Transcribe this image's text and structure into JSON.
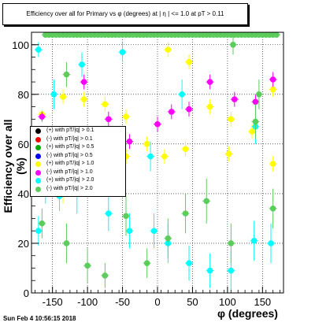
{
  "chart_data": {
    "type": "scatter",
    "title": "Efficiency over all for Primary vs φ (degrees) at | η | <= 1.0 at pT > 0.11",
    "xlabel": "φ (degrees)",
    "ylabel": "Efficiency over all (%)",
    "xlim": [
      -180,
      180
    ],
    "ylim": [
      0,
      105
    ],
    "x_ticks": [
      -150,
      -100,
      -50,
      0,
      50,
      100,
      150
    ],
    "y_ticks": [
      0,
      20,
      40,
      60,
      80,
      100
    ],
    "grid": true,
    "legend_position": "left-middle",
    "series": [
      {
        "name": "(+) with pT/|q| > 0.1",
        "color": "#000000",
        "points": []
      },
      {
        "name": "(-) with pT/|q| > 0.1",
        "color": "#ff0000",
        "points": []
      },
      {
        "name": "(+) with pT/|q| > 0.5",
        "color": "#00aa00",
        "points": []
      },
      {
        "name": "(-) with pT/|q| > 0.5",
        "color": "#0000ff",
        "points": []
      },
      {
        "name": "(+) with pT/|q| > 1.0",
        "color": "#ffff00",
        "points": [
          [
            -165,
            72,
            2
          ],
          [
            -135,
            79,
            3
          ],
          [
            -105,
            78,
            3
          ],
          [
            -75,
            76,
            3
          ],
          [
            -45,
            71,
            3
          ],
          [
            -15,
            60,
            3
          ],
          [
            15,
            98,
            3
          ],
          [
            45,
            93,
            3
          ],
          [
            75,
            75,
            3
          ],
          [
            105,
            70,
            3
          ],
          [
            135,
            65,
            3
          ],
          [
            165,
            82,
            3
          ],
          [
            -165,
            57,
            3
          ],
          [
            -135,
            40,
            4
          ],
          [
            -105,
            56,
            3
          ],
          [
            -45,
            55,
            3
          ],
          [
            10,
            55,
            3
          ],
          [
            40,
            58,
            3
          ],
          [
            102,
            56,
            3
          ],
          [
            165,
            52,
            3
          ]
        ]
      },
      {
        "name": "(-) with pT/|q| > 1.0",
        "color": "#ff00ff",
        "points": [
          [
            -165,
            71,
            2
          ],
          [
            -105,
            85,
            3
          ],
          [
            -70,
            70,
            3
          ],
          [
            -40,
            61,
            3
          ],
          [
            0,
            68,
            3
          ],
          [
            20,
            73,
            3
          ],
          [
            45,
            74,
            3
          ],
          [
            75,
            85,
            3
          ],
          [
            110,
            78,
            3
          ],
          [
            140,
            77,
            3
          ],
          [
            165,
            86,
            3
          ]
        ]
      },
      {
        "name": "(+) with pT/|q| > 2.0",
        "color": "#00ffff",
        "points": [
          [
            -170,
            98,
            3
          ],
          [
            -148,
            80,
            6
          ],
          [
            -108,
            92,
            5
          ],
          [
            -85,
            57,
            6
          ],
          [
            -50,
            97,
            4
          ],
          [
            -10,
            55,
            6
          ],
          [
            -160,
            42,
            6
          ],
          [
            -140,
            39,
            6
          ],
          [
            -115,
            40,
            8
          ],
          [
            -70,
            32,
            7
          ],
          [
            -40,
            25,
            7
          ],
          [
            -5,
            25,
            7
          ],
          [
            15,
            20,
            8
          ],
          [
            45,
            12,
            7
          ],
          [
            75,
            9,
            7
          ],
          [
            105,
            9,
            8
          ],
          [
            138,
            21,
            8
          ],
          [
            162,
            20,
            8
          ],
          [
            -170,
            25,
            6
          ],
          [
            35,
            80,
            6
          ],
          [
            140,
            67,
            7
          ]
        ]
      },
      {
        "name": "(-) with pT/|q| > 2.0",
        "color": "#5ccd5c",
        "points": [
          [
            -160,
            104,
            0
          ],
          [
            -155,
            104,
            0
          ],
          [
            -150,
            104,
            0
          ],
          [
            -145,
            104,
            0
          ],
          [
            -140,
            104,
            0
          ],
          [
            -135,
            104,
            0
          ],
          [
            -130,
            104,
            0
          ],
          [
            -125,
            104,
            0
          ],
          [
            -120,
            104,
            0
          ],
          [
            -115,
            104,
            0
          ],
          [
            -110,
            104,
            0
          ],
          [
            -105,
            104,
            0
          ],
          [
            -100,
            104,
            0
          ],
          [
            -95,
            104,
            0
          ],
          [
            -90,
            104,
            0
          ],
          [
            -85,
            104,
            0
          ],
          [
            -80,
            104,
            0
          ],
          [
            -75,
            104,
            0
          ],
          [
            -70,
            104,
            0
          ],
          [
            -65,
            104,
            0
          ],
          [
            -60,
            104,
            0
          ],
          [
            -55,
            104,
            0
          ],
          [
            -50,
            104,
            0
          ],
          [
            -45,
            104,
            0
          ],
          [
            -40,
            104,
            0
          ],
          [
            -35,
            104,
            0
          ],
          [
            -30,
            104,
            0
          ],
          [
            -25,
            104,
            0
          ],
          [
            -20,
            104,
            0
          ],
          [
            -15,
            104,
            0
          ],
          [
            -10,
            104,
            0
          ],
          [
            -5,
            104,
            0
          ],
          [
            0,
            104,
            0
          ],
          [
            5,
            104,
            0
          ],
          [
            10,
            104,
            0
          ],
          [
            15,
            104,
            0
          ],
          [
            20,
            104,
            0
          ],
          [
            25,
            104,
            0
          ],
          [
            30,
            104,
            0
          ],
          [
            35,
            104,
            0
          ],
          [
            40,
            104,
            0
          ],
          [
            45,
            104,
            0
          ],
          [
            50,
            104,
            0
          ],
          [
            55,
            104,
            0
          ],
          [
            60,
            104,
            0
          ],
          [
            65,
            104,
            0
          ],
          [
            70,
            104,
            0
          ],
          [
            75,
            104,
            0
          ],
          [
            80,
            104,
            0
          ],
          [
            85,
            104,
            0
          ],
          [
            90,
            104,
            0
          ],
          [
            95,
            104,
            0
          ],
          [
            100,
            104,
            0
          ],
          [
            105,
            104,
            0
          ],
          [
            110,
            104,
            0
          ],
          [
            115,
            104,
            0
          ],
          [
            120,
            104,
            0
          ],
          [
            125,
            104,
            0
          ],
          [
            130,
            104,
            0
          ],
          [
            135,
            104,
            0
          ],
          [
            140,
            104,
            0
          ],
          [
            145,
            104,
            0
          ],
          [
            150,
            104,
            0
          ],
          [
            155,
            104,
            0
          ],
          [
            160,
            104,
            0
          ],
          [
            165,
            104,
            0
          ],
          [
            170,
            104,
            0
          ],
          [
            -130,
            88,
            5
          ],
          [
            -165,
            28,
            6
          ],
          [
            -130,
            20,
            8
          ],
          [
            -100,
            11,
            7
          ],
          [
            -75,
            7,
            5
          ],
          [
            -45,
            31,
            8
          ],
          [
            -15,
            12,
            6
          ],
          [
            15,
            22,
            8
          ],
          [
            40,
            32,
            8
          ],
          [
            70,
            37,
            9
          ],
          [
            105,
            20,
            8
          ],
          [
            140,
            69,
            7
          ],
          [
            145,
            80,
            6
          ],
          [
            108,
            100,
            4
          ],
          [
            165,
            34,
            8
          ]
        ]
      }
    ]
  },
  "footer": {
    "timestamp": "Sun Feb  4 10:56:15 2018"
  }
}
